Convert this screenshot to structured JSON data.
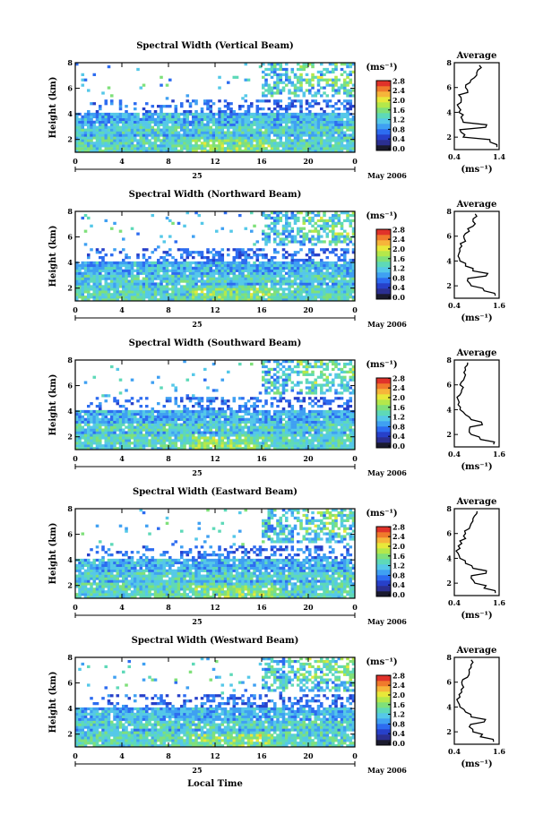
{
  "page": {
    "bottom_label": "Local Time"
  },
  "common": {
    "height_axis_label": "Height (km)",
    "height_ticks": [
      "2",
      "4",
      "6",
      "8"
    ],
    "time_ticks": [
      "0",
      "4",
      "8",
      "12",
      "16",
      "20",
      "0"
    ],
    "date_day": "25",
    "date_label": "May 2006",
    "colorbar_unit": "(ms⁻¹)",
    "avg_title": "Average",
    "avg_unit": "(ms⁻¹)",
    "avg_yticks": [
      "2",
      "4",
      "6",
      "8"
    ]
  },
  "colors": {
    "colormap": [
      "#1a1a2e",
      "#2b2f91",
      "#2740c9",
      "#2d6cf0",
      "#3fa0f2",
      "#55c8e8",
      "#5ed9b8",
      "#7fe07a",
      "#b4e84b",
      "#e8e83a",
      "#f6b53a",
      "#f07a2c",
      "#e0322a"
    ]
  },
  "chart_data": [
    {
      "type": "heatmap",
      "title": "Spectral Width (Vertical Beam)",
      "xlabel": "",
      "ylabel": "Height (km)",
      "xlim": [
        0,
        24
      ],
      "ylim": [
        1,
        8
      ],
      "colorbar_ticks": [
        "0.0",
        "0.4",
        "0.8",
        "1.2",
        "1.6",
        "2.0",
        "2.4",
        "2.8"
      ],
      "colorbar_range": [
        0,
        3.0
      ],
      "average": {
        "xlim": [
          0.4,
          1.4
        ],
        "xticks": [
          "0.4",
          "1.4"
        ],
        "profile": [
          [
            1.2,
            1.35
          ],
          [
            1.6,
            1.2
          ],
          [
            2.0,
            0.6
          ],
          [
            2.4,
            0.55
          ],
          [
            2.8,
            1.1
          ],
          [
            3.2,
            0.6
          ],
          [
            3.6,
            0.55
          ],
          [
            4.0,
            0.5
          ],
          [
            4.4,
            0.5
          ],
          [
            4.8,
            0.55
          ],
          [
            5.2,
            0.55
          ],
          [
            5.6,
            0.7
          ],
          [
            6.0,
            0.65
          ],
          [
            6.4,
            0.75
          ],
          [
            6.8,
            0.85
          ],
          [
            7.2,
            0.9
          ],
          [
            7.6,
            1.0
          ]
        ]
      }
    },
    {
      "type": "heatmap",
      "title": "Spectral Width (Northward Beam)",
      "xlabel": "",
      "ylabel": "Height (km)",
      "xlim": [
        0,
        24
      ],
      "ylim": [
        1,
        8
      ],
      "colorbar_ticks": [
        "0.0",
        "0.4",
        "0.8",
        "1.2",
        "1.6",
        "2.0",
        "2.4",
        "2.8"
      ],
      "colorbar_range": [
        0,
        3.0
      ],
      "average": {
        "xlim": [
          0.4,
          1.6
        ],
        "xticks": [
          "0.4",
          "1.6"
        ],
        "profile": [
          [
            1.2,
            1.5
          ],
          [
            1.6,
            1.2
          ],
          [
            2.0,
            0.85
          ],
          [
            2.4,
            0.75
          ],
          [
            2.8,
            1.25
          ],
          [
            3.2,
            0.9
          ],
          [
            3.6,
            0.7
          ],
          [
            4.0,
            0.55
          ],
          [
            4.4,
            0.5
          ],
          [
            4.8,
            0.55
          ],
          [
            5.2,
            0.6
          ],
          [
            5.6,
            0.7
          ],
          [
            6.0,
            0.65
          ],
          [
            6.4,
            0.8
          ],
          [
            6.8,
            0.9
          ],
          [
            7.2,
            0.9
          ],
          [
            7.6,
            1.0
          ]
        ]
      }
    },
    {
      "type": "heatmap",
      "title": "Spectral Width (Southward Beam)",
      "xlabel": "",
      "ylabel": "Height (km)",
      "xlim": [
        0,
        24
      ],
      "ylim": [
        1,
        8
      ],
      "colorbar_ticks": [
        "0.0",
        "0.4",
        "0.8",
        "1.2",
        "1.6",
        "2.0",
        "2.4",
        "2.8"
      ],
      "colorbar_range": [
        0,
        3.0
      ],
      "average": {
        "xlim": [
          0.4,
          1.6
        ],
        "xticks": [
          "0.4",
          "1.6"
        ],
        "profile": [
          [
            1.2,
            1.45
          ],
          [
            1.6,
            1.1
          ],
          [
            2.0,
            0.85
          ],
          [
            2.4,
            0.8
          ],
          [
            2.8,
            1.15
          ],
          [
            3.2,
            0.85
          ],
          [
            3.6,
            0.7
          ],
          [
            4.0,
            0.55
          ],
          [
            4.4,
            0.5
          ],
          [
            4.8,
            0.5
          ],
          [
            5.2,
            0.55
          ],
          [
            5.6,
            0.6
          ],
          [
            6.0,
            0.55
          ],
          [
            6.4,
            0.65
          ],
          [
            6.8,
            0.7
          ],
          [
            7.2,
            0.7
          ],
          [
            7.6,
            0.75
          ]
        ]
      }
    },
    {
      "type": "heatmap",
      "title": "Spectral Width (Eastward Beam)",
      "xlabel": "",
      "ylabel": "Height (km)",
      "xlim": [
        0,
        24
      ],
      "ylim": [
        1,
        8
      ],
      "colorbar_ticks": [
        "0.0",
        "0.4",
        "0.8",
        "1.2",
        "1.6",
        "2.0",
        "2.4",
        "2.8"
      ],
      "colorbar_range": [
        0,
        3.0
      ],
      "average": {
        "xlim": [
          0.4,
          1.6
        ],
        "xticks": [
          "0.4",
          "1.6"
        ],
        "profile": [
          [
            1.2,
            1.5
          ],
          [
            1.6,
            1.2
          ],
          [
            2.0,
            0.95
          ],
          [
            2.4,
            0.85
          ],
          [
            2.8,
            1.25
          ],
          [
            3.2,
            0.9
          ],
          [
            3.6,
            0.7
          ],
          [
            4.0,
            0.55
          ],
          [
            4.4,
            0.5
          ],
          [
            4.8,
            0.55
          ],
          [
            5.2,
            0.6
          ],
          [
            5.6,
            0.7
          ],
          [
            6.0,
            0.7
          ],
          [
            6.4,
            0.8
          ],
          [
            6.8,
            0.85
          ],
          [
            7.2,
            0.9
          ],
          [
            7.6,
            1.0
          ]
        ]
      }
    },
    {
      "type": "heatmap",
      "title": "Spectral Width (Westward Beam)",
      "xlabel": "",
      "ylabel": "Height (km)",
      "xlim": [
        0,
        24
      ],
      "ylim": [
        1,
        8
      ],
      "colorbar_ticks": [
        "0.0",
        "0.4",
        "0.8",
        "1.2",
        "1.6",
        "2.0",
        "2.4",
        "2.8"
      ],
      "colorbar_range": [
        0,
        3.0
      ],
      "average": {
        "xlim": [
          0.4,
          1.6
        ],
        "xticks": [
          "0.4",
          "1.6"
        ],
        "profile": [
          [
            1.2,
            1.45
          ],
          [
            1.6,
            1.1
          ],
          [
            2.0,
            0.9
          ],
          [
            2.4,
            0.8
          ],
          [
            2.8,
            1.2
          ],
          [
            3.2,
            0.85
          ],
          [
            3.6,
            0.7
          ],
          [
            4.0,
            0.55
          ],
          [
            4.4,
            0.5
          ],
          [
            4.8,
            0.55
          ],
          [
            5.2,
            0.6
          ],
          [
            5.6,
            0.65
          ],
          [
            6.0,
            0.6
          ],
          [
            6.4,
            0.75
          ],
          [
            6.8,
            0.8
          ],
          [
            7.2,
            0.85
          ],
          [
            7.6,
            0.9
          ]
        ]
      }
    }
  ]
}
